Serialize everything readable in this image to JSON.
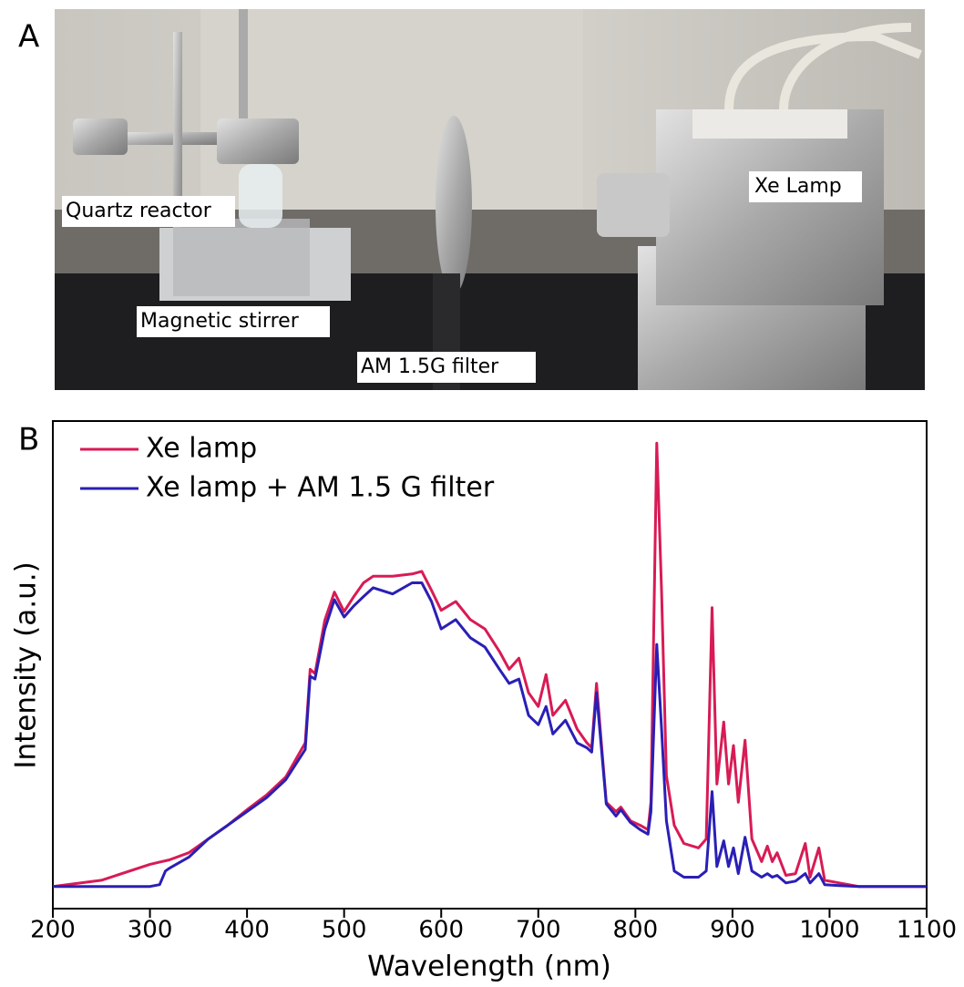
{
  "panel_a": {
    "label": "A",
    "annotations": [
      "Quartz reactor",
      "Magnetic stirrer",
      "AM 1.5G filter",
      "Xe Lamp"
    ]
  },
  "chart_data": {
    "type": "line",
    "panel_label": "B",
    "x_label": "Wavelength (nm)",
    "y_label": "Intensity (a.u.)",
    "x": [
      200,
      250,
      300,
      310,
      316,
      320,
      340,
      360,
      380,
      400,
      420,
      440,
      460,
      465,
      470,
      480,
      490,
      500,
      510,
      520,
      530,
      550,
      570,
      580,
      590,
      600,
      615,
      630,
      645,
      660,
      670,
      680,
      690,
      700,
      708,
      715,
      728,
      740,
      750,
      755,
      760,
      765,
      770,
      780,
      785,
      795,
      805,
      813,
      816,
      822,
      827,
      832,
      840,
      850,
      865,
      873,
      879,
      884,
      891,
      896,
      901,
      906,
      913,
      920,
      930,
      936,
      941,
      946,
      955,
      965,
      975,
      980,
      989,
      995,
      1010,
      1030,
      1100
    ],
    "series": [
      {
        "name": "Xe lamp",
        "color": "#d81b55",
        "values": [
          0,
          0.014,
          0.05,
          0.055,
          0.058,
          0.06,
          0.076,
          0.107,
          0.138,
          0.173,
          0.206,
          0.247,
          0.324,
          0.49,
          0.48,
          0.6,
          0.664,
          0.62,
          0.654,
          0.685,
          0.7,
          0.7,
          0.705,
          0.711,
          0.668,
          0.623,
          0.643,
          0.602,
          0.581,
          0.53,
          0.49,
          0.515,
          0.437,
          0.406,
          0.478,
          0.386,
          0.42,
          0.355,
          0.324,
          0.313,
          0.458,
          0.324,
          0.19,
          0.169,
          0.179,
          0.148,
          0.138,
          0.128,
          0.19,
          1.0,
          0.664,
          0.25,
          0.138,
          0.097,
          0.087,
          0.107,
          0.629,
          0.231,
          0.371,
          0.231,
          0.318,
          0.19,
          0.33,
          0.107,
          0.056,
          0.091,
          0.056,
          0.076,
          0.025,
          0.029,
          0.097,
          0.021,
          0.087,
          0.014,
          0.008,
          0,
          0
        ]
      },
      {
        "name": "Xe lamp + AM 1.5 G filter",
        "color": "#2a1fb5",
        "values": [
          0,
          0,
          0,
          0.004,
          0.035,
          0.041,
          0.066,
          0.107,
          0.138,
          0.169,
          0.2,
          0.241,
          0.309,
          0.474,
          0.468,
          0.58,
          0.647,
          0.608,
          0.633,
          0.654,
          0.674,
          0.66,
          0.685,
          0.685,
          0.643,
          0.581,
          0.602,
          0.561,
          0.54,
          0.49,
          0.458,
          0.468,
          0.386,
          0.365,
          0.406,
          0.344,
          0.375,
          0.324,
          0.313,
          0.303,
          0.437,
          0.313,
          0.186,
          0.159,
          0.173,
          0.144,
          0.128,
          0.118,
          0.169,
          0.546,
          0.355,
          0.148,
          0.035,
          0.021,
          0.021,
          0.035,
          0.214,
          0.045,
          0.103,
          0.045,
          0.087,
          0.029,
          0.111,
          0.035,
          0.021,
          0.029,
          0.021,
          0.025,
          0.008,
          0.012,
          0.029,
          0.008,
          0.029,
          0.004,
          0.002,
          0,
          0
        ]
      }
    ],
    "xlim": [
      200,
      1100
    ],
    "xticks": [
      200,
      300,
      400,
      500,
      600,
      700,
      800,
      900,
      1000,
      1100
    ],
    "ylim": [
      -0.05,
      1.05
    ],
    "legend": "upper left"
  }
}
